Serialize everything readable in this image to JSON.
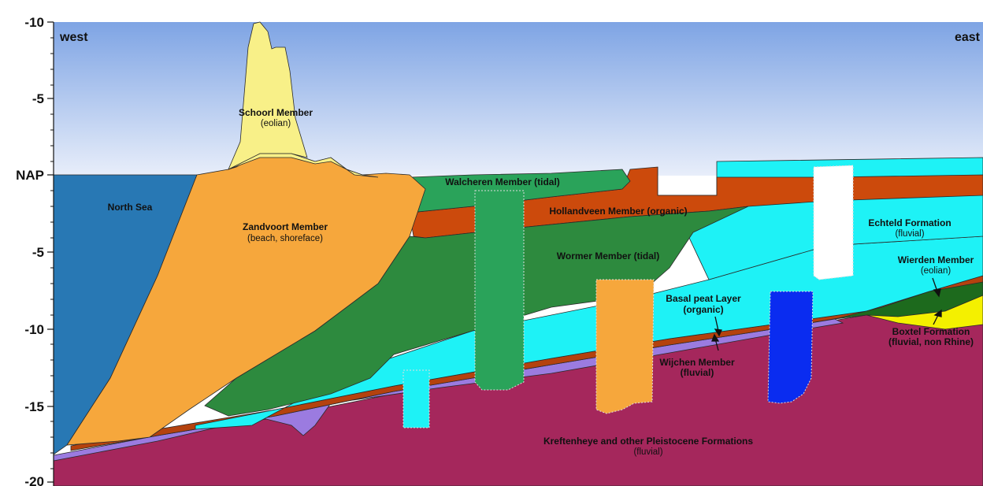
{
  "axis": {
    "ticks": [
      "-10",
      "-5",
      "NAP",
      "-5",
      "-10",
      "-15",
      "-20"
    ],
    "left_label": "west",
    "right_label": "east"
  },
  "units": {
    "north_sea": {
      "name": "North Sea"
    },
    "schoorl": {
      "name": "Schoorl Member",
      "desc": "(eolian)"
    },
    "zandvoort": {
      "name": "Zandvoort Member",
      "desc": "(beach,  shoreface)"
    },
    "walcheren": {
      "name": "Walcheren Member (tidal)"
    },
    "hollandveen": {
      "name": "Hollandveen Member (organic)"
    },
    "wormer": {
      "name": "Wormer Member (tidal)"
    },
    "echteld": {
      "name": "Echteld Formation",
      "desc": "(fluvial)"
    },
    "wierden": {
      "name": "Wierden Member",
      "desc": "(eolian)"
    },
    "basal_peat": {
      "name": "Basal peat Layer",
      "desc": "(organic)"
    },
    "wijchen": {
      "name": "Wijchen Member",
      "desc": "(fluvial)"
    },
    "boxtel": {
      "name": "Boxtel Formation",
      "desc": "(fluvial, non Rhine)"
    },
    "kreftenheye": {
      "name": "Kreftenheye and other Pleistocene Formations",
      "desc": "(fluvial)"
    }
  },
  "colors": {
    "sky_top": "#7ea4e4",
    "sky_bottom": "#e8eefa",
    "north_sea": "#2878b4",
    "schoorl": "#f8f088",
    "zandvoort": "#f6a73c",
    "walcheren": "#2aa35a",
    "wormer": "#2d8a3e",
    "hollandveen": "#cc4a0c",
    "echteld": "#1ef2f6",
    "basal_peat": "#b4420e",
    "wijchen": "#9b7be0",
    "kreftenheye": "#a5275c",
    "wierden_yellow": "#f4f000",
    "boxtel_green": "#1d6a1d",
    "blue_column": "#0a2cf0",
    "white_column": "#ffffff"
  }
}
